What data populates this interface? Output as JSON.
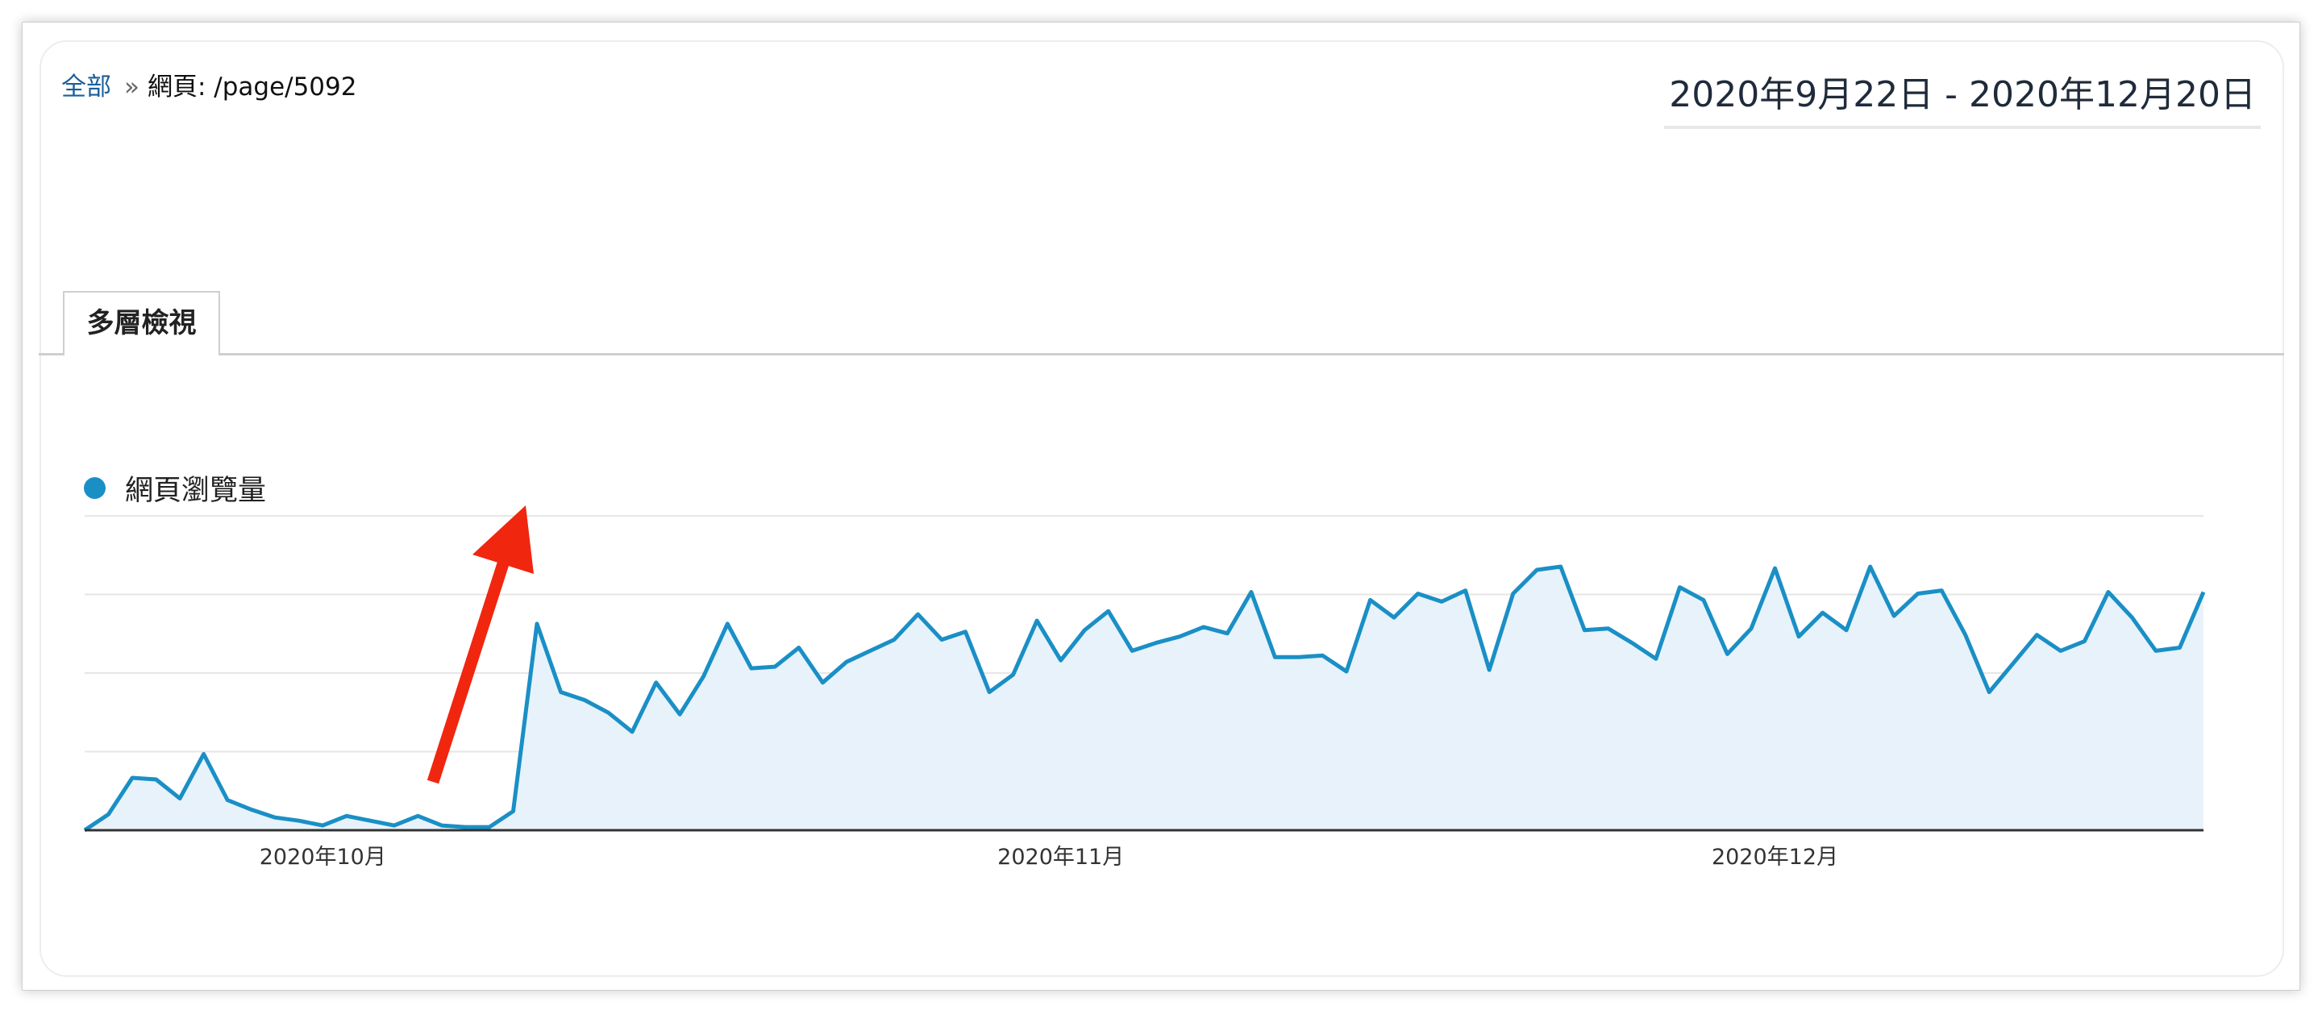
{
  "breadcrumb": {
    "root_label": "全部",
    "separator": "»",
    "page_label": "網頁: /page/5092"
  },
  "date_range": "2020年9月22日 - 2020年12月20日",
  "tab": {
    "label": "多層檢視"
  },
  "legend": {
    "series_label": "網頁瀏覽量",
    "color": "#1a8fc6"
  },
  "colors": {
    "line": "#1a8fc6",
    "fill": "#e8f2fa",
    "arrow": "#f1260f",
    "grid": "#e6e6e6",
    "axis": "#333333"
  },
  "chart_data": {
    "type": "area",
    "series": [
      {
        "name": "網頁瀏覽量",
        "values": [
          0,
          10,
          33,
          32,
          20,
          48,
          19,
          13,
          8,
          6,
          3,
          9,
          6,
          3,
          9,
          3,
          2,
          2,
          12,
          130,
          87,
          82,
          74,
          62,
          93,
          73,
          97,
          130,
          102,
          103,
          115,
          93,
          106,
          113,
          120,
          136,
          120,
          125,
          87,
          98,
          132,
          107,
          126,
          138,
          113,
          118,
          122,
          128,
          124,
          150,
          109,
          109,
          110,
          100,
          145,
          134,
          149,
          144,
          151,
          101,
          149,
          164,
          166,
          126,
          127,
          118,
          108,
          153,
          145,
          111,
          127,
          165,
          122,
          137,
          126,
          166,
          135,
          149,
          151,
          123,
          87,
          105,
          123,
          113,
          119,
          150,
          134,
          113,
          115,
          150
        ]
      }
    ],
    "x_tick_labels": [
      "2020年10月",
      "2020年11月",
      "2020年12月"
    ],
    "x_tick_indices": [
      10,
      41,
      71
    ],
    "ylim": [
      0,
      198
    ],
    "grid": true,
    "legend_position": "top-left",
    "annotation": "red arrow pointing upward at the traffic jump"
  }
}
